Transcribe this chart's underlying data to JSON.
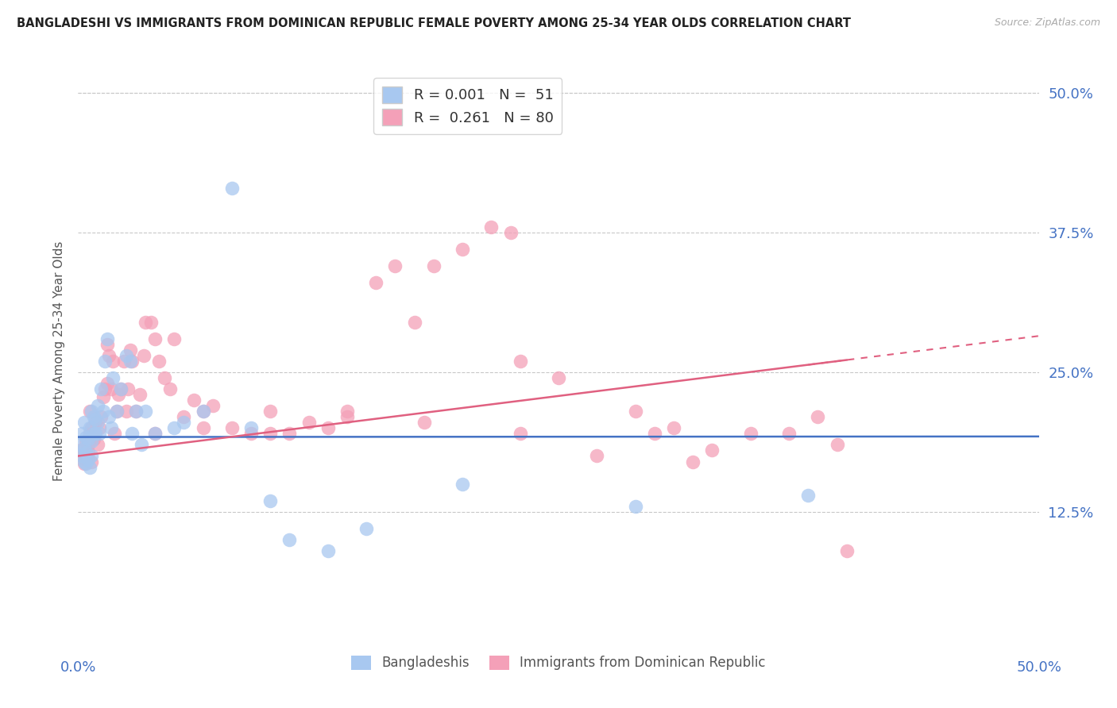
{
  "title": "BANGLADESHI VS IMMIGRANTS FROM DOMINICAN REPUBLIC FEMALE POVERTY AMONG 25-34 YEAR OLDS CORRELATION CHART",
  "source": "Source: ZipAtlas.com",
  "ylabel": "Female Poverty Among 25-34 Year Olds",
  "xlim": [
    0,
    0.5
  ],
  "ylim": [
    0.0,
    0.52
  ],
  "yticks": [
    0.125,
    0.25,
    0.375,
    0.5
  ],
  "ytick_labels": [
    "12.5%",
    "25.0%",
    "37.5%",
    "50.0%"
  ],
  "color_blue": "#a8c8f0",
  "color_pink": "#f4a0b8",
  "trendline_blue": "#4472c4",
  "trendline_pink": "#e06080",
  "background": "#ffffff",
  "grid_color": "#c8c8c8",
  "blue_intercept": 0.192,
  "blue_slope": 0.001,
  "pink_intercept": 0.175,
  "pink_slope": 0.215,
  "blue_x": [
    0.001,
    0.002,
    0.002,
    0.003,
    0.003,
    0.003,
    0.004,
    0.004,
    0.004,
    0.005,
    0.005,
    0.006,
    0.006,
    0.007,
    0.007,
    0.007,
    0.008,
    0.008,
    0.009,
    0.009,
    0.01,
    0.01,
    0.011,
    0.012,
    0.013,
    0.014,
    0.015,
    0.016,
    0.017,
    0.018,
    0.02,
    0.022,
    0.025,
    0.027,
    0.028,
    0.03,
    0.033,
    0.035,
    0.04,
    0.05,
    0.055,
    0.065,
    0.08,
    0.09,
    0.1,
    0.11,
    0.13,
    0.15,
    0.2,
    0.29,
    0.38
  ],
  "blue_y": [
    0.185,
    0.175,
    0.195,
    0.17,
    0.182,
    0.205,
    0.168,
    0.178,
    0.192,
    0.172,
    0.19,
    0.165,
    0.2,
    0.175,
    0.188,
    0.215,
    0.21,
    0.195,
    0.208,
    0.195,
    0.22,
    0.205,
    0.195,
    0.235,
    0.215,
    0.26,
    0.28,
    0.21,
    0.2,
    0.245,
    0.215,
    0.235,
    0.265,
    0.26,
    0.195,
    0.215,
    0.185,
    0.215,
    0.195,
    0.2,
    0.205,
    0.215,
    0.415,
    0.2,
    0.135,
    0.1,
    0.09,
    0.11,
    0.15,
    0.13,
    0.14
  ],
  "pink_x": [
    0.001,
    0.002,
    0.003,
    0.004,
    0.004,
    0.005,
    0.005,
    0.006,
    0.006,
    0.007,
    0.007,
    0.007,
    0.008,
    0.009,
    0.01,
    0.011,
    0.012,
    0.013,
    0.014,
    0.015,
    0.015,
    0.016,
    0.017,
    0.018,
    0.019,
    0.02,
    0.021,
    0.022,
    0.024,
    0.025,
    0.026,
    0.027,
    0.028,
    0.03,
    0.032,
    0.034,
    0.035,
    0.038,
    0.04,
    0.042,
    0.045,
    0.048,
    0.05,
    0.055,
    0.06,
    0.065,
    0.07,
    0.08,
    0.09,
    0.1,
    0.11,
    0.12,
    0.13,
    0.14,
    0.155,
    0.165,
    0.175,
    0.185,
    0.2,
    0.215,
    0.225,
    0.23,
    0.25,
    0.27,
    0.29,
    0.3,
    0.31,
    0.33,
    0.35,
    0.37,
    0.385,
    0.395,
    0.04,
    0.065,
    0.1,
    0.14,
    0.18,
    0.23,
    0.32,
    0.4
  ],
  "pink_y": [
    0.18,
    0.175,
    0.168,
    0.172,
    0.188,
    0.185,
    0.178,
    0.195,
    0.215,
    0.17,
    0.192,
    0.2,
    0.19,
    0.205,
    0.185,
    0.2,
    0.21,
    0.228,
    0.235,
    0.24,
    0.275,
    0.265,
    0.235,
    0.26,
    0.195,
    0.215,
    0.23,
    0.235,
    0.26,
    0.215,
    0.235,
    0.27,
    0.26,
    0.215,
    0.23,
    0.265,
    0.295,
    0.295,
    0.28,
    0.26,
    0.245,
    0.235,
    0.28,
    0.21,
    0.225,
    0.215,
    0.22,
    0.2,
    0.195,
    0.215,
    0.195,
    0.205,
    0.2,
    0.215,
    0.33,
    0.345,
    0.295,
    0.345,
    0.36,
    0.38,
    0.375,
    0.26,
    0.245,
    0.175,
    0.215,
    0.195,
    0.2,
    0.18,
    0.195,
    0.195,
    0.21,
    0.185,
    0.195,
    0.2,
    0.195,
    0.21,
    0.205,
    0.195,
    0.17,
    0.09
  ]
}
